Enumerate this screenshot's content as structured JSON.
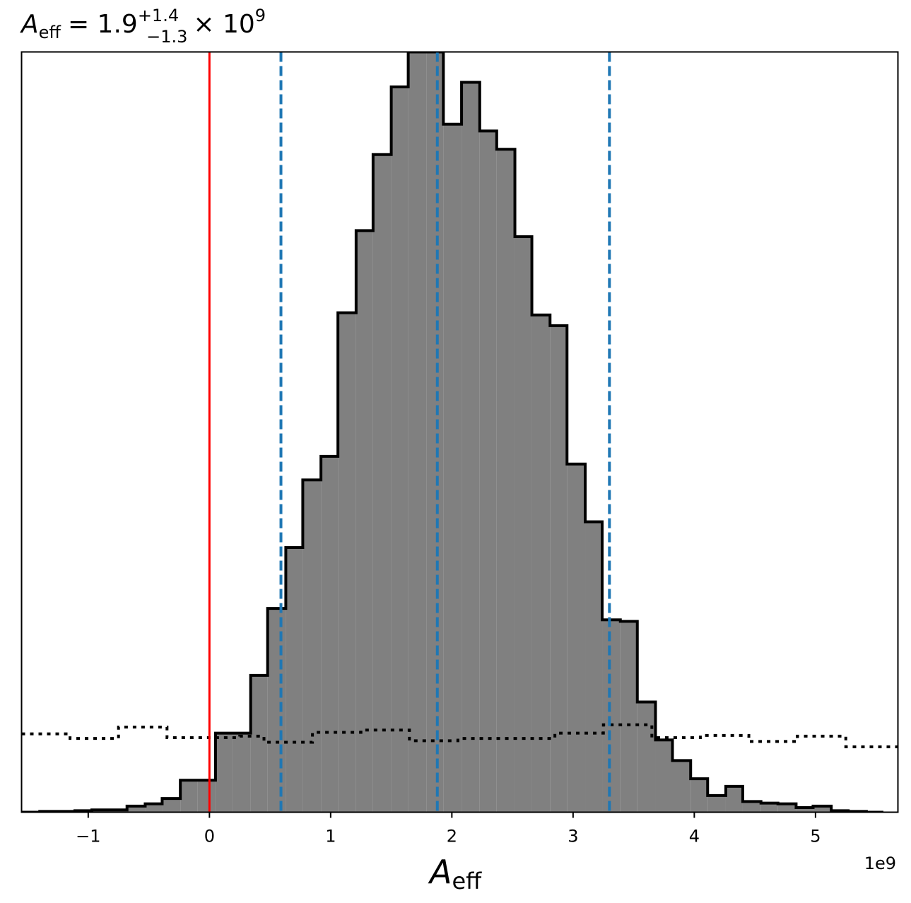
{
  "chart_data": {
    "type": "bar",
    "title": {
      "symbol": "A",
      "symbol_sub": "eff",
      "equals": "= 1.9",
      "sup": "+1.4",
      "sub": "−1.3",
      "times": "× 10",
      "exp": "9"
    },
    "xlabel": {
      "symbol": "A",
      "sub": "eff"
    },
    "x_offset_label": "1e9",
    "xlim": [
      -1.55,
      5.68
    ],
    "ylim": [
      0,
      1.0
    ],
    "x_ticks": [
      {
        "value": -1,
        "label": "−1"
      },
      {
        "value": 0,
        "label": "0"
      },
      {
        "value": 1,
        "label": "1"
      },
      {
        "value": 2,
        "label": "2"
      },
      {
        "value": 3,
        "label": "3"
      },
      {
        "value": 4,
        "label": "4"
      },
      {
        "value": 5,
        "label": "5"
      }
    ],
    "histogram": {
      "bin_edges": [
        -1.55,
        -1.4,
        -1.26,
        -1.11,
        -0.97,
        -0.82,
        -0.68,
        -0.53,
        -0.39,
        -0.24,
        -0.1,
        0.05,
        0.19,
        0.34,
        0.48,
        0.63,
        0.77,
        0.92,
        1.06,
        1.21,
        1.35,
        1.5,
        1.64,
        1.79,
        1.93,
        2.08,
        2.23,
        2.37,
        2.52,
        2.66,
        2.81,
        2.95,
        3.1,
        3.24,
        3.39,
        3.53,
        3.68,
        3.82,
        3.97,
        4.11,
        4.26,
        4.4,
        4.55,
        4.69,
        4.84,
        4.98,
        5.13,
        5.27,
        5.42,
        5.56
      ],
      "heights": [
        0.0,
        0.001,
        0.001,
        0.002,
        0.003,
        0.003,
        0.008,
        0.011,
        0.018,
        0.042,
        0.042,
        0.104,
        0.104,
        0.18,
        0.268,
        0.348,
        0.437,
        0.468,
        0.657,
        0.765,
        0.865,
        0.954,
        1.0,
        1.0,
        0.905,
        0.96,
        0.896,
        0.872,
        0.757,
        0.654,
        0.64,
        0.458,
        0.382,
        0.253,
        0.251,
        0.145,
        0.095,
        0.068,
        0.044,
        0.022,
        0.034,
        0.014,
        0.012,
        0.011,
        0.006,
        0.008,
        0.002,
        0.001,
        0.0
      ]
    },
    "prior_dotted": {
      "bin_edges": [
        -1.55,
        -1.35,
        -1.15,
        -0.95,
        -0.75,
        -0.55,
        -0.35,
        -0.15,
        0.05,
        0.25,
        0.45,
        0.65,
        0.85,
        1.05,
        1.25,
        1.45,
        1.65,
        1.85,
        2.05,
        2.25,
        2.45,
        2.65,
        2.85,
        3.05,
        3.25,
        3.45,
        3.65,
        3.85,
        4.05,
        4.25,
        4.45,
        4.65,
        4.85,
        5.05,
        5.25,
        5.45,
        5.68
      ],
      "heights": [
        0.103,
        0.103,
        0.097,
        0.097,
        0.112,
        0.112,
        0.098,
        0.098,
        0.098,
        0.1,
        0.092,
        0.092,
        0.105,
        0.105,
        0.108,
        0.108,
        0.094,
        0.094,
        0.097,
        0.097,
        0.097,
        0.097,
        0.104,
        0.104,
        0.115,
        0.115,
        0.098,
        0.098,
        0.101,
        0.101,
        0.093,
        0.093,
        0.1,
        0.1,
        0.086,
        0.086
      ]
    },
    "median_line": {
      "value": 1.88,
      "color": "#1f77b4"
    },
    "lower_line": {
      "value": 0.59,
      "color": "#1f77b4"
    },
    "upper_line": {
      "value": 3.3,
      "color": "#1f77b4"
    },
    "reference_line": {
      "value": 0.0,
      "color": "#ff0000"
    },
    "fill_color": "#808080",
    "edge_color": "#000000"
  }
}
